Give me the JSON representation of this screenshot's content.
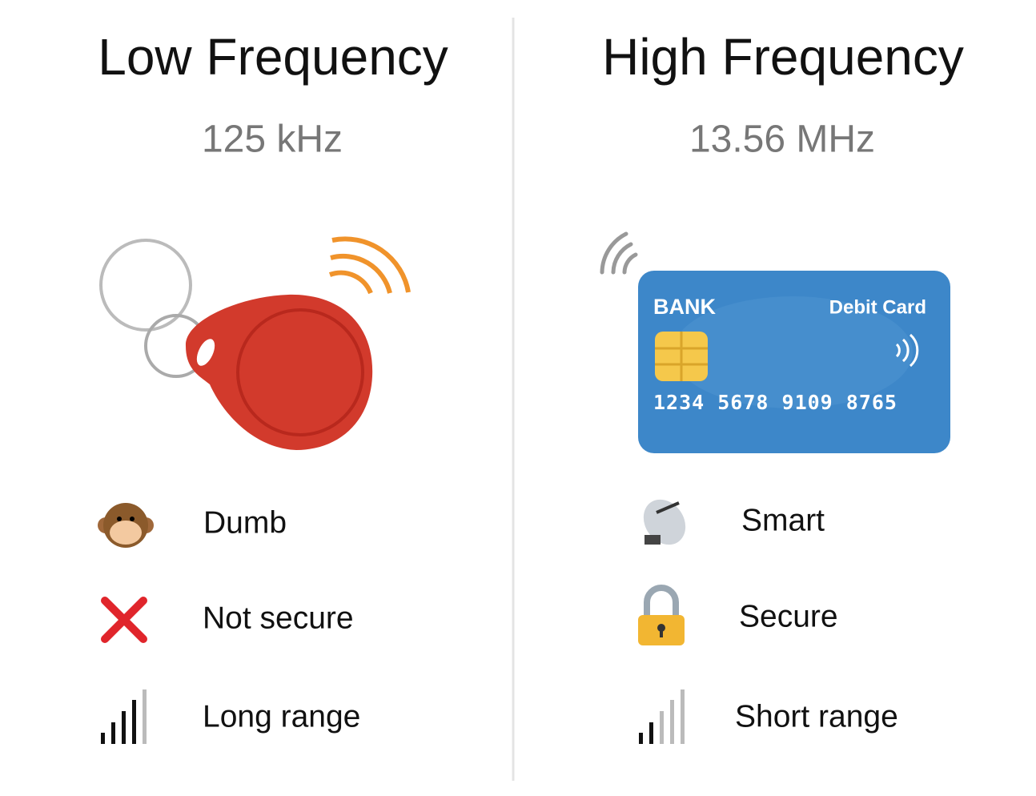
{
  "left": {
    "title": "Low Frequency",
    "frequency": "125 kHz",
    "features": [
      {
        "label": "Dumb"
      },
      {
        "label": "Not secure"
      },
      {
        "label": "Long range"
      }
    ]
  },
  "right": {
    "title": "High Frequency",
    "frequency": "13.56 MHz",
    "card": {
      "bank": "BANK",
      "type": "Debit Card",
      "number": "1234 5678 9109 8765"
    },
    "features": [
      {
        "label": "Smart"
      },
      {
        "label": "Secure"
      },
      {
        "label": "Short range"
      }
    ]
  }
}
